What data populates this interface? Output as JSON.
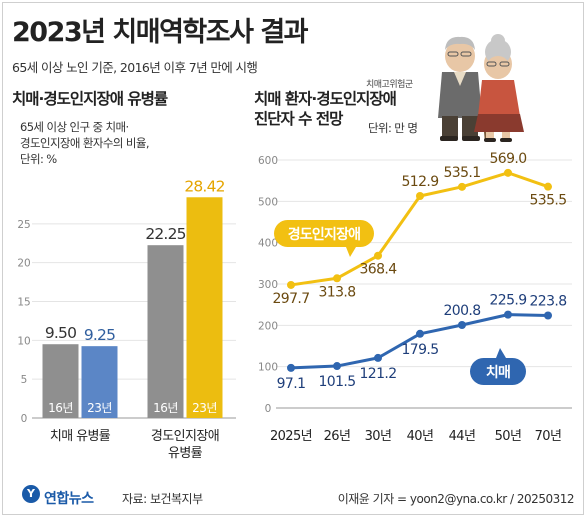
{
  "header": {
    "title": "2023년 치매역학조사 결과",
    "subtitle": "65세 이상 노인 기준, 2016년 이후 7년 만에 시행"
  },
  "footer": {
    "logo": "연합뉴스",
    "source": "자료: 보건복지부",
    "credit": "이재윤 기자 = yoon2@yna.co.kr / 20250312"
  },
  "chart_data": [
    {
      "type": "bar",
      "title": "치매·경도인지장애 유병률",
      "note_lines": [
        "65세 이상 인구 중 치매·",
        "경도인지장애 환자수의 비율,",
        "단위: %"
      ],
      "categories": [
        "치매 유병률",
        "경도인지장애 유병률"
      ],
      "category_lines": [
        [
          "치매 유병률"
        ],
        [
          "경도인지장애",
          "유병률"
        ]
      ],
      "series": [
        {
          "name": "16년",
          "values": [
            9.5,
            22.25
          ],
          "color": "#8f8f8f"
        },
        {
          "name": "23년",
          "values": [
            9.25,
            28.42
          ],
          "colors": [
            "#5b86c6",
            "#ecbd10"
          ]
        }
      ],
      "value_labels": [
        [
          "9.50",
          "22.25"
        ],
        [
          "9.25",
          "28.42"
        ]
      ],
      "value_label_colors": [
        [
          "#333333",
          "#333333"
        ],
        [
          "#2f5e9e",
          "#e5a500"
        ]
      ],
      "yticks": [
        "0",
        "5",
        "10",
        "15",
        "20",
        "25"
      ],
      "ylim": [
        0,
        30
      ],
      "grid": true
    },
    {
      "type": "line",
      "title_lines": [
        "치매 환자·경도인지장애",
        "진단자 수 전망"
      ],
      "small_label": "치매고위험군",
      "unit": "단위: 만 명",
      "categories": [
        "2025년",
        "26년",
        "30년",
        "40년",
        "44년",
        "50년",
        "70년"
      ],
      "series": [
        {
          "name": "경도인지장애",
          "values": [
            297.7,
            313.8,
            368.4,
            512.9,
            535.1,
            569.0,
            535.5
          ],
          "labels": [
            "297.7",
            "313.8",
            "368.4",
            "512.9",
            "535.1",
            "569.0",
            "535.5"
          ],
          "color": "#f2c012",
          "label_color": "#6b4a10"
        },
        {
          "name": "치매",
          "values": [
            97.1,
            101.5,
            121.2,
            179.5,
            200.8,
            225.9,
            223.8
          ],
          "labels": [
            "97.1",
            "101.5",
            "121.2",
            "179.5",
            "200.8",
            "225.9",
            "223.8"
          ],
          "color": "#2f66b0",
          "label_color": "#1e3e7a"
        }
      ],
      "yticks": [
        "0",
        "100",
        "200",
        "300",
        "400",
        "500",
        "600"
      ],
      "ylim": [
        0,
        600
      ],
      "grid": true,
      "legend": "inline-callouts"
    }
  ],
  "icons": [
    "elderly-couple-icon",
    "yonhap-logo-icon"
  ]
}
